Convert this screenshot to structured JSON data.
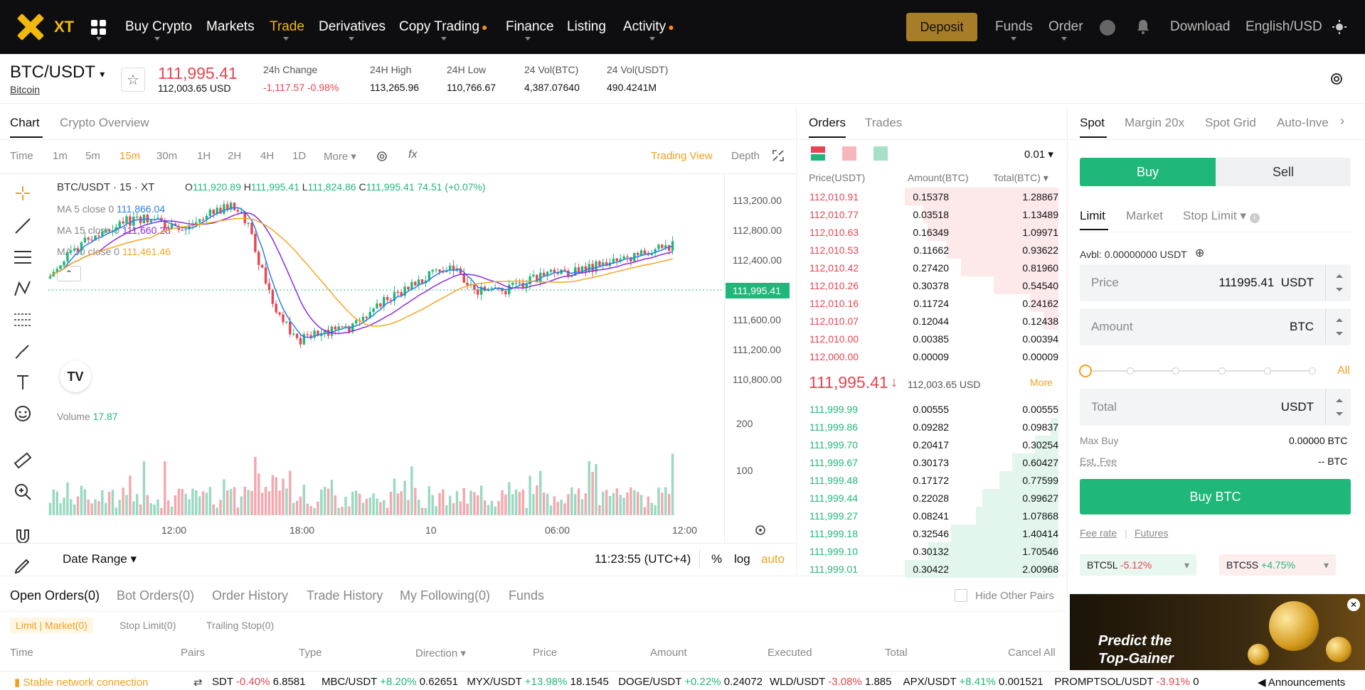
{
  "nav": {
    "logo": "XT",
    "items": [
      "Buy Crypto",
      "Markets",
      "Trade",
      "Derivatives",
      "Copy Trading",
      "Finance",
      "Listing",
      "Activity"
    ],
    "deposit": "Deposit",
    "funds": "Funds",
    "order": "Order",
    "download": "Download",
    "language": "English/USD"
  },
  "ticker": {
    "pair": "BTC/USDT",
    "name": "Bitcoin",
    "last": "111,995.41",
    "last_usd": "112,003.65 USD",
    "change_label": "24h Change",
    "change": "-1,117.57 -0.98%",
    "high_label": "24H High",
    "high": "113,265.96",
    "low_label": "24H Low",
    "low": "110,766.67",
    "volb_label": "24 Vol(BTC)",
    "volb": "4,387.07640",
    "volu_label": "24 Vol(USDT)",
    "volu": "490.4241M"
  },
  "chart_tabs": [
    "Chart",
    "Crypto Overview"
  ],
  "timeframes": [
    "Time",
    "1m",
    "5m",
    "15m",
    "30m",
    "1H",
    "2H",
    "4H",
    "1D",
    "More"
  ],
  "chart_links": {
    "tradingview": "Trading View",
    "depth": "Depth"
  },
  "legend": {
    "title": "BTC/USDT · 15 · XT",
    "o_label": "O",
    "o": "111,920.89",
    "h_label": "H",
    "h": "111,995.41",
    "l_label": "L",
    "l": "111,824.86",
    "c_label": "C",
    "c": "111,995.41",
    "chg": "74.51 (+0.07%)",
    "ma5_label": "MA 5 close 0",
    "ma5": "111,866.04",
    "ma15_label": "MA 15 close 0",
    "ma15": "111,660.28",
    "ma30_label": "MA 30 close 0",
    "ma30": "111,461.46",
    "vol_label": "Volume",
    "vol": "17.87"
  },
  "price_axis": [
    "113,200.00",
    "112,800.00",
    "112,400.00",
    "111,995.41",
    "111,600.00",
    "111,200.00",
    "110,800.00"
  ],
  "volume_axis": [
    "200",
    "100"
  ],
  "time_axis": [
    "12:00",
    "18:00",
    "10",
    "06:00",
    "12:00"
  ],
  "chart_footer": {
    "date_range": "Date Range",
    "clock": "11:23:55 (UTC+4)",
    "pct": "%",
    "log": "log",
    "auto": "auto"
  },
  "colors": {
    "up": "#20b77a",
    "down": "#e64552",
    "ma5": "#2b7de9",
    "ma15": "#8a2be2",
    "ma30": "#f5a623",
    "accent": "#f0b90b"
  },
  "orderbook": {
    "tabs": [
      "Orders",
      "Trades"
    ],
    "precision": "0.01",
    "headers": [
      "Price(USDT)",
      "Amount(BTC)",
      "Total(BTC)"
    ],
    "asks": [
      [
        "112,010.91",
        "0.15378",
        "1.28867"
      ],
      [
        "112,010.77",
        "0.03518",
        "1.13489"
      ],
      [
        "112,010.63",
        "0.16349",
        "1.09971"
      ],
      [
        "112,010.53",
        "0.11662",
        "0.93622"
      ],
      [
        "112,010.42",
        "0.27420",
        "0.81960"
      ],
      [
        "112,010.26",
        "0.30378",
        "0.54540"
      ],
      [
        "112,010.16",
        "0.11724",
        "0.24162"
      ],
      [
        "112,010.07",
        "0.12044",
        "0.12438"
      ],
      [
        "112,010.00",
        "0.00385",
        "0.00394"
      ],
      [
        "112,000.00",
        "0.00009",
        "0.00009"
      ]
    ],
    "mid_price": "111,995.41",
    "mid_usd": "112,003.65 USD",
    "more": "More",
    "bids": [
      [
        "111,999.99",
        "0.00555",
        "0.00555"
      ],
      [
        "111,999.86",
        "0.09282",
        "0.09837"
      ],
      [
        "111,999.70",
        "0.20417",
        "0.30254"
      ],
      [
        "111,999.67",
        "0.30173",
        "0.60427"
      ],
      [
        "111,999.48",
        "0.17172",
        "0.77599"
      ],
      [
        "111,999.44",
        "0.22028",
        "0.99627"
      ],
      [
        "111,999.27",
        "0.08241",
        "1.07868"
      ],
      [
        "111,999.18",
        "0.32546",
        "1.40414"
      ],
      [
        "111,999.10",
        "0.30132",
        "1.70546"
      ],
      [
        "111,999.01",
        "0.30422",
        "2.00968"
      ]
    ]
  },
  "trade": {
    "tabs": [
      "Spot",
      "Margin 20x",
      "Spot Grid",
      "Auto-Inve"
    ],
    "buy": "Buy",
    "sell": "Sell",
    "order_types": [
      "Limit",
      "Market",
      "Stop Limit"
    ],
    "avbl": "Avbl: 0.00000000 USDT",
    "price_label": "Price",
    "price_value": "111995.41",
    "price_unit": "USDT",
    "amount_label": "Amount",
    "amount_unit": "BTC",
    "all": "All",
    "total_label": "Total",
    "total_unit": "USDT",
    "maxbuy_label": "Max Buy",
    "maxbuy": "0.00000 BTC",
    "fee_label": "Est. Fee",
    "fee": "-- BTC",
    "submit": "Buy BTC",
    "fee_rate": "Fee rate",
    "futures": "Futures",
    "lev1_name": "BTC5L",
    "lev1_chg": "-5.12%",
    "lev2_name": "BTC5S",
    "lev2_chg": "+4.75%"
  },
  "banner": {
    "line1": "Predict the",
    "line2": "Top-Gainer"
  },
  "bottom": {
    "tabs": [
      "Open Orders(0)",
      "Bot Orders(0)",
      "Order History",
      "Trade History",
      "My Following(0)",
      "Funds"
    ],
    "hide_pairs": "Hide Other Pairs",
    "subtabs": [
      "Limit | Market(0)",
      "Stop Limit(0)",
      "Trailing Stop(0)"
    ],
    "columns": [
      "Time",
      "Pairs",
      "Type",
      "Direction",
      "Price",
      "Amount",
      "Executed",
      "Total",
      "Cancel All"
    ]
  },
  "status": {
    "connection": "Stable network connection",
    "tickers": [
      {
        "sym": "SDT",
        "chg": "-0.40%",
        "price": "6.8581"
      },
      {
        "sym": "MBC/USDT",
        "chg": "+8.20%",
        "price": "0.62651"
      },
      {
        "sym": "MYX/USDT",
        "chg": "+13.98%",
        "price": "18.1545"
      },
      {
        "sym": "DOGE/USDT",
        "chg": "+0.22%",
        "price": "0.24072"
      },
      {
        "sym": "WLD/USDT",
        "chg": "-3.08%",
        "price": "1.885"
      },
      {
        "sym": "APX/USDT",
        "chg": "+8.41%",
        "price": "0.001521"
      },
      {
        "sym": "PROMPTSOL/USDT",
        "chg": "-3.91%",
        "price": "0"
      }
    ],
    "announcements": "Announcements"
  }
}
